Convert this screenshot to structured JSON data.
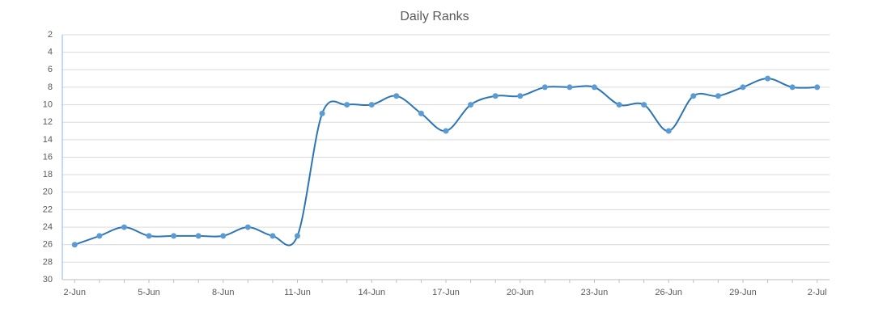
{
  "chart_data": {
    "type": "line",
    "title": "Daily Ranks",
    "categories": [
      "2-Jun",
      null,
      null,
      "5-Jun",
      null,
      null,
      "8-Jun",
      null,
      null,
      "11-Jun",
      null,
      null,
      "14-Jun",
      null,
      null,
      "17-Jun",
      null,
      null,
      "20-Jun",
      null,
      null,
      "23-Jun",
      null,
      null,
      "26-Jun",
      null,
      null,
      "29-Jun",
      null,
      null,
      "2-Jul"
    ],
    "values": [
      26,
      25,
      24,
      25,
      25,
      25,
      25,
      24,
      25,
      25,
      11,
      10,
      10,
      9,
      11,
      13,
      10,
      9,
      9,
      8,
      8,
      8,
      10,
      10,
      13,
      9,
      9,
      8,
      7,
      8,
      8
    ],
    "line_color": "#2e75b6",
    "marker_color": "#5b9bd5",
    "ylim": [
      30,
      2
    ],
    "yticks": [
      2,
      4,
      6,
      8,
      10,
      12,
      14,
      16,
      18,
      20,
      22,
      24,
      26,
      28,
      30
    ],
    "grid": true,
    "smooth": true
  }
}
